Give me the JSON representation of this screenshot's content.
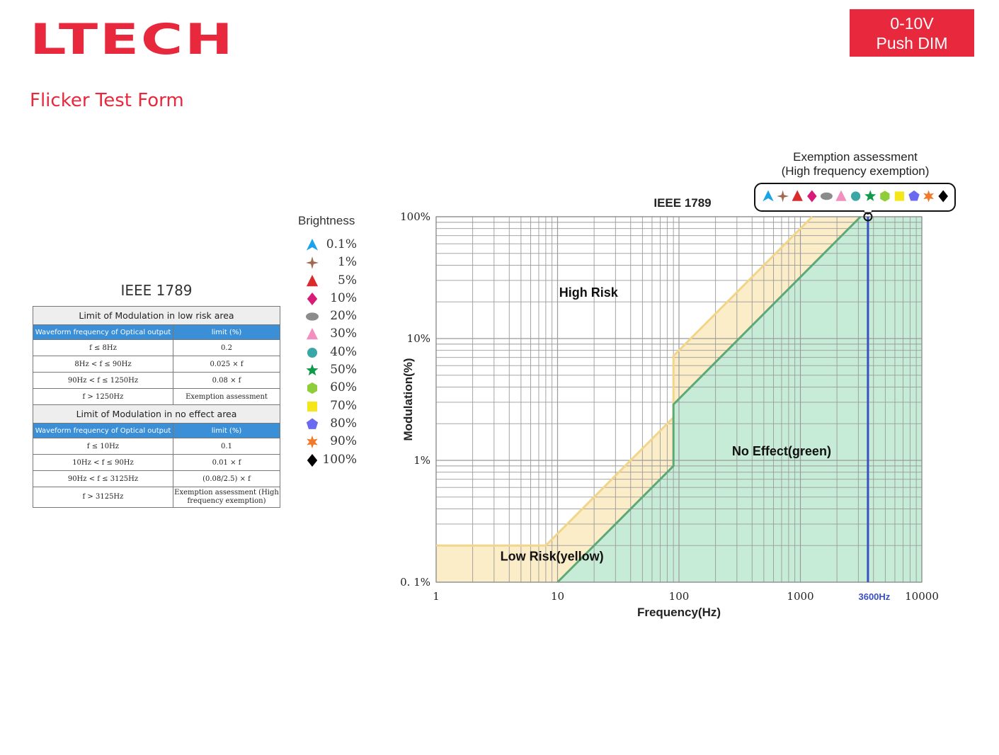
{
  "brand": {
    "logo_text": "LTECH",
    "color": "#e8283c"
  },
  "badge": {
    "line1": "0-10V",
    "line2": "Push DIM"
  },
  "page_subtitle": "Flicker Test Form",
  "limits_table": {
    "title": "IEEE 1789",
    "sections": [
      {
        "heading": "Limit of Modulation in low risk area",
        "col1": "Waveform frequency of Optical output",
        "col2": "limit (%)",
        "rows": [
          {
            "freq": "f ≤ 8Hz",
            "limit": "0.2"
          },
          {
            "freq": "8Hz < f ≤ 90Hz",
            "limit": "0.025 × f"
          },
          {
            "freq": "90Hz < f ≤ 1250Hz",
            "limit": "0.08 × f"
          },
          {
            "freq": "f > 1250Hz",
            "limit": "Exemption assessment"
          }
        ]
      },
      {
        "heading": "Limit of Modulation in no effect area",
        "col1": "Waveform frequency of Optical output",
        "col2": "limit (%)",
        "rows": [
          {
            "freq": "f ≤ 10Hz",
            "limit": "0.1"
          },
          {
            "freq": "10Hz < f ≤ 90Hz",
            "limit": "0.01 × f"
          },
          {
            "freq": "90Hz < f ≤ 3125Hz",
            "limit": "(0.08/2.5) × f"
          },
          {
            "freq": "f > 3125Hz",
            "limit": "Exemption assessment (High frequency exemption)"
          }
        ]
      }
    ]
  },
  "legend": {
    "title": "Brightness",
    "items": [
      {
        "label": "0.1%",
        "icon": "triangle-spike-icon",
        "color": "#1aa3e8"
      },
      {
        "label": "1%",
        "icon": "four-point-star-icon",
        "color": "#a06a50"
      },
      {
        "label": "5%",
        "icon": "triangle-icon",
        "color": "#d92b2b"
      },
      {
        "label": "10%",
        "icon": "diamond-icon",
        "color": "#d81b78"
      },
      {
        "label": "20%",
        "icon": "ellipse-icon",
        "color": "#8c8c8c"
      },
      {
        "label": "30%",
        "icon": "triangle-icon",
        "color": "#f28fbf"
      },
      {
        "label": "40%",
        "icon": "circle-icon",
        "color": "#3aa6a6"
      },
      {
        "label": "50%",
        "icon": "star-icon",
        "color": "#0f9a4a"
      },
      {
        "label": "60%",
        "icon": "hexagon-icon",
        "color": "#8fce3a"
      },
      {
        "label": "70%",
        "icon": "square-icon",
        "color": "#f5e61a"
      },
      {
        "label": "80%",
        "icon": "pentagon-icon",
        "color": "#6a6af0"
      },
      {
        "label": "90%",
        "icon": "burst-star-icon",
        "color": "#f07a2a"
      },
      {
        "label": "100%",
        "icon": "diamond-icon",
        "color": "#000000"
      }
    ]
  },
  "chart_data": {
    "type": "line",
    "title": "IEEE 1789",
    "xlabel": "Frequency(Hz)",
    "ylabel": "Modulation(%)",
    "xscale": "log",
    "yscale": "log",
    "xlim": [
      1,
      10000
    ],
    "ylim": [
      0.1,
      100
    ],
    "x_ticks": [
      1,
      10,
      100,
      1000,
      10000
    ],
    "x_tick_labels": [
      "1",
      "10",
      "100",
      "1000",
      "10000"
    ],
    "y_ticks": [
      0.1,
      1,
      10,
      100
    ],
    "y_tick_labels": [
      "0. 1%",
      "1%",
      "10%",
      "100%"
    ],
    "grid": true,
    "series": [
      {
        "role": "low-risk-boundary",
        "color": "#f2d58a",
        "points": [
          [
            1,
            0.2
          ],
          [
            8,
            0.2
          ],
          [
            90,
            2.25
          ],
          [
            90,
            7.2
          ],
          [
            1250,
            100
          ]
        ]
      },
      {
        "role": "no-effect-boundary",
        "color": "#5fa876",
        "points": [
          [
            10,
            0.1
          ],
          [
            90,
            0.9
          ],
          [
            90,
            2.88
          ],
          [
            3125,
            100
          ]
        ]
      }
    ],
    "regions": [
      {
        "label": "High Risk",
        "at": [
          18,
          22
        ]
      },
      {
        "label": "Low Risk(yellow)",
        "at": [
          9,
          0.15
        ]
      },
      {
        "label": "No Effect(green)",
        "at": [
          700,
          1.1
        ]
      }
    ],
    "region_colors": {
      "low_risk": "#fcedc9",
      "no_effect": "#c6ecd8"
    },
    "reference_line": {
      "x": 3600,
      "label": "3600Hz",
      "color": "#3a4fc0"
    },
    "annotation": {
      "title_line1": "Exemption assessment",
      "title_line2": "(High frequency exemption)",
      "at": [
        3600,
        100
      ],
      "marker_count": 13
    }
  }
}
